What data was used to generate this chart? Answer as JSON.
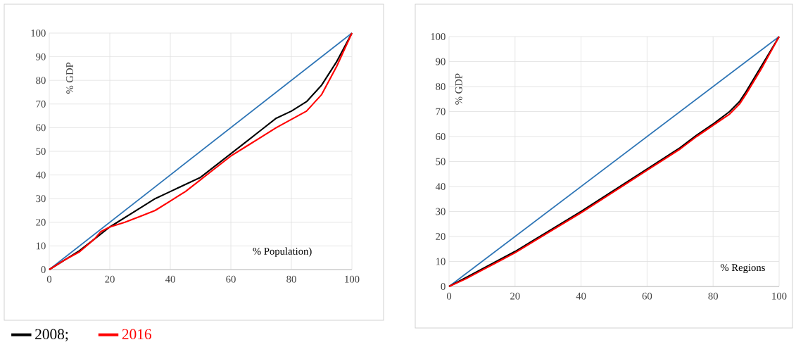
{
  "chart_data": [
    {
      "type": "line",
      "xlabel": "% Population)",
      "ylabel": "% GDP",
      "xlim": [
        0,
        100
      ],
      "ylim": [
        0,
        100
      ],
      "xticks": [
        0,
        20,
        40,
        60,
        80,
        100
      ],
      "yticks": [
        0,
        10,
        20,
        30,
        40,
        50,
        60,
        70,
        80,
        90,
        100
      ],
      "grid": true,
      "legend": "bottom left",
      "series": [
        {
          "color": "#2e75b6",
          "x": [
            0,
            100
          ],
          "values": [
            0,
            100
          ]
        },
        {
          "name": "2008;",
          "color": "#000000",
          "x": [
            0,
            5,
            10,
            15,
            20,
            25,
            30,
            35,
            40,
            45,
            50,
            55,
            60,
            65,
            70,
            75,
            80,
            85,
            90,
            95,
            100
          ],
          "values": [
            0,
            4,
            8,
            13,
            18,
            22,
            26,
            30,
            33,
            36,
            39,
            44,
            49,
            54,
            59,
            64,
            67,
            71,
            78,
            88,
            100
          ]
        },
        {
          "name": "2016",
          "color": "#ff0000",
          "x": [
            0,
            5,
            10,
            15,
            17,
            20,
            25,
            30,
            35,
            40,
            45,
            50,
            55,
            60,
            65,
            70,
            75,
            80,
            85,
            90,
            95,
            100
          ],
          "values": [
            0,
            4,
            7.5,
            13,
            16,
            18,
            20,
            22.5,
            25,
            29,
            33,
            38,
            43,
            48,
            52,
            56,
            60,
            63.5,
            67,
            74,
            86,
            100
          ]
        }
      ]
    },
    {
      "type": "line",
      "xlabel": "% Regions",
      "ylabel": "% GDP",
      "xlim": [
        0,
        100
      ],
      "ylim": [
        0,
        100
      ],
      "xticks": [
        0,
        20,
        40,
        60,
        80,
        100
      ],
      "yticks": [
        0,
        10,
        20,
        30,
        40,
        50,
        60,
        70,
        80,
        90,
        100
      ],
      "grid": true,
      "series": [
        {
          "color": "#2e75b6",
          "x": [
            0,
            100
          ],
          "values": [
            0,
            100
          ]
        },
        {
          "color": "#000000",
          "x": [
            0,
            5,
            10,
            15,
            20,
            30,
            40,
            50,
            60,
            70,
            75,
            80,
            85,
            88,
            90,
            95,
            100
          ],
          "values": [
            0,
            3.5,
            7,
            10.5,
            14,
            22,
            30,
            38.5,
            47,
            55.5,
            60.5,
            65,
            70,
            74,
            78,
            89,
            100
          ]
        },
        {
          "color": "#ff0000",
          "x": [
            0,
            5,
            10,
            15,
            20,
            30,
            40,
            50,
            60,
            70,
            75,
            80,
            85,
            88,
            90,
            95,
            100
          ],
          "values": [
            0,
            3,
            6.5,
            10,
            13.5,
            21.5,
            29.5,
            38,
            46.5,
            55,
            60,
            64.5,
            69,
            73,
            77,
            88,
            100
          ]
        }
      ]
    }
  ]
}
